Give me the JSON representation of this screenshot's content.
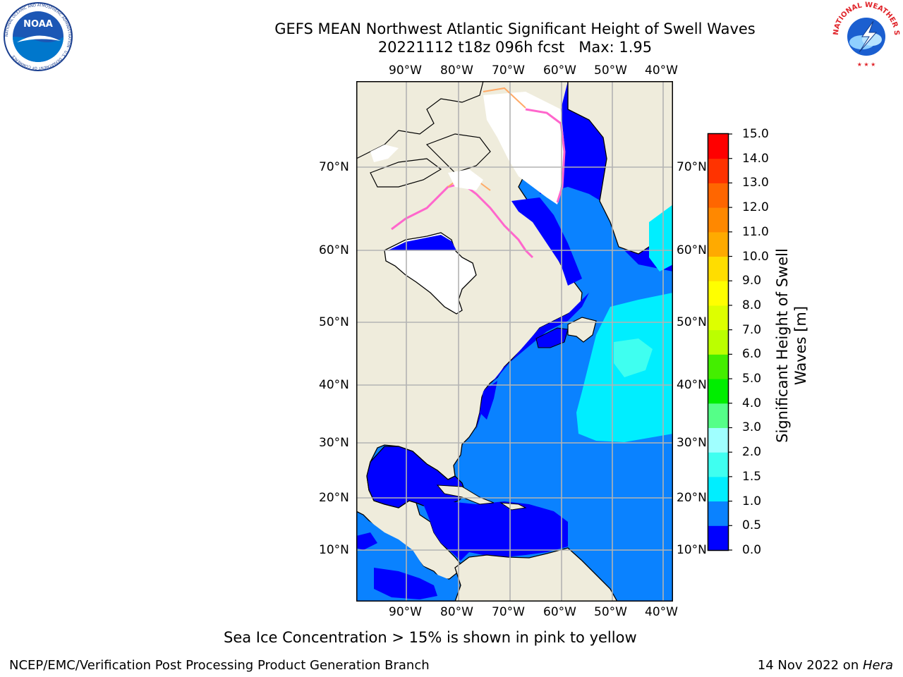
{
  "header": {
    "title_line1": "GEFS MEAN Northwest Atlantic Significant Height of Swell Waves",
    "title_line2": "20221112 t18z 096h fcst   Max: 1.95"
  },
  "logos": {
    "noaa": {
      "text": "NOAA",
      "ring_text": "NATIONAL OCEANIC AND ATMOSPHERIC ADMINISTRATION · U.S. DEPARTMENT OF COMMERCE"
    },
    "nws": {
      "ring_text": "NATIONAL WEATHER SERVICE"
    }
  },
  "map": {
    "lon_labels": [
      "90°W",
      "80°W",
      "70°W",
      "60°W",
      "50°W",
      "40°W"
    ],
    "lat_labels": [
      "70°N",
      "60°N",
      "50°N",
      "40°N",
      "30°N",
      "20°N",
      "10°N"
    ],
    "land_color": "#efecdc",
    "ice_colors": [
      "#ff66cc",
      "#ffaa66",
      "#ffdd33"
    ]
  },
  "colorbar": {
    "label": "Significant Height of Swell Waves [m]",
    "label_line1": "Significant Height of Swell",
    "label_line2": "Waves [m]",
    "ticks": [
      "0.0",
      "0.5",
      "1.0",
      "1.5",
      "2.0",
      "3.0",
      "4.0",
      "5.0",
      "6.0",
      "7.0",
      "8.0",
      "9.0",
      "10.0",
      "11.0",
      "12.0",
      "13.0",
      "14.0",
      "15.0"
    ],
    "colors": [
      "#0000ff",
      "#0a82ff",
      "#00eeff",
      "#3ffff0",
      "#a0ffff",
      "#55ff88",
      "#00ee00",
      "#44ee00",
      "#bbff00",
      "#ddff00",
      "#ffff00",
      "#ffdd00",
      "#ffaa00",
      "#ff8800",
      "#ff6600",
      "#ff3300",
      "#ff0000"
    ]
  },
  "notes": {
    "ice": "Sea Ice Concentration > 15% is shown in pink to yellow"
  },
  "footer": {
    "left": "NCEP/EMC/Verification Post Processing Product Generation Branch",
    "right_date": "14 Nov 2022 on ",
    "right_host": "Hera"
  }
}
